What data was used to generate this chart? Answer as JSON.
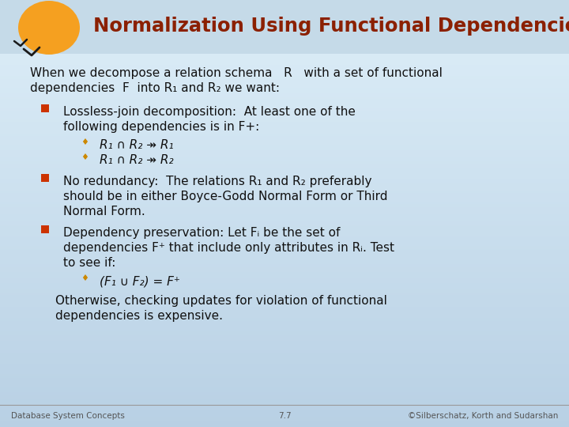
{
  "title": "Normalization Using Functional Dependencies",
  "title_color": "#8B2000",
  "title_fontsize": 17.5,
  "bg_color_top": "#ddeef8",
  "bg_color_bottom": "#b8d0e4",
  "header_bg": "#c8dcea",
  "text_color": "#111111",
  "bullet_color": "#cc3300",
  "sub_bullet_color": "#cc8800",
  "footer_left": "Database System Concepts",
  "footer_center": "7.7",
  "footer_right": "©Silberschatz, Korth and Sudarshan",
  "intro_line1": "When we decompose a relation schema   R   with a set of functional",
  "intro_line2": "dependencies  F  into R₁ and R₂ we want:",
  "b1_lines": [
    "Lossless-join decomposition:  At least one of the",
    "following dependencies is in F+:"
  ],
  "b1_sub": [
    "R₁ ∩ R₂ ↠ R₁",
    "R₁ ∩ R₂ ↠ R₂"
  ],
  "b2_lines": [
    "No redundancy:  The relations R₁ and R₂ preferably",
    "should be in either Boyce-Godd Normal Form or Third",
    "Normal Form."
  ],
  "b3_lines": [
    "Dependency preservation: Let Fᵢ be the set of",
    "dependencies F⁺ that include only attributes in Rᵢ. Test",
    "to see if:"
  ],
  "b3_sub": [
    "(F₁ ∪ F₂) = F⁺"
  ],
  "otherwise_lines": [
    "Otherwise, checking updates for violation of functional",
    "dependencies is expensive."
  ]
}
